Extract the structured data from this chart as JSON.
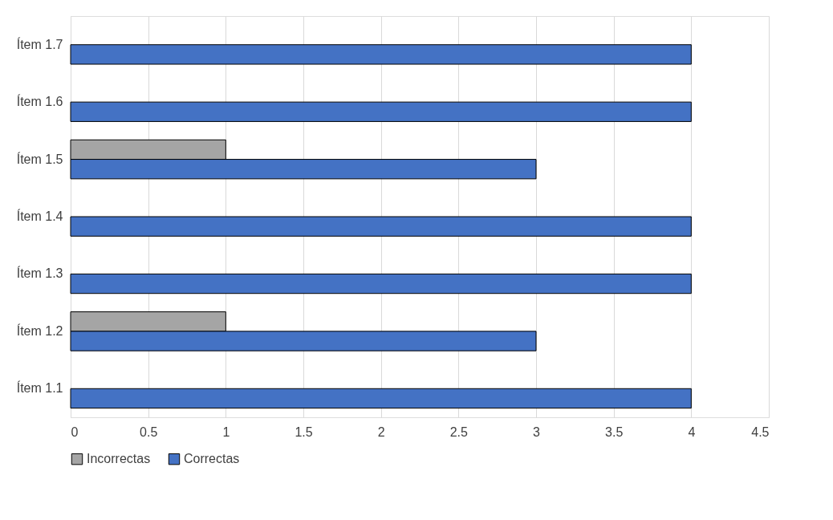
{
  "chart_data": {
    "type": "bar",
    "orientation": "horizontal",
    "categories": [
      "Ítem 1.7",
      "Ítem 1.6",
      "Ítem 1.5",
      "Ítem 1.4",
      "Ítem 1.3",
      "Ítem 1.2",
      "Ítem 1.1"
    ],
    "series": [
      {
        "name": "Incorrectas",
        "color": "#a5a5a5",
        "values": [
          null,
          null,
          1,
          null,
          null,
          1,
          null
        ]
      },
      {
        "name": "Correctas",
        "color": "#4472c4",
        "values": [
          4,
          4,
          3,
          4,
          4,
          3,
          4
        ]
      }
    ],
    "xlim": [
      0,
      4.5
    ],
    "xticks": [
      0,
      0.5,
      1,
      1.5,
      2,
      2.5,
      3,
      3.5,
      4,
      4.5
    ],
    "grid": "x",
    "legend": "bottom"
  }
}
